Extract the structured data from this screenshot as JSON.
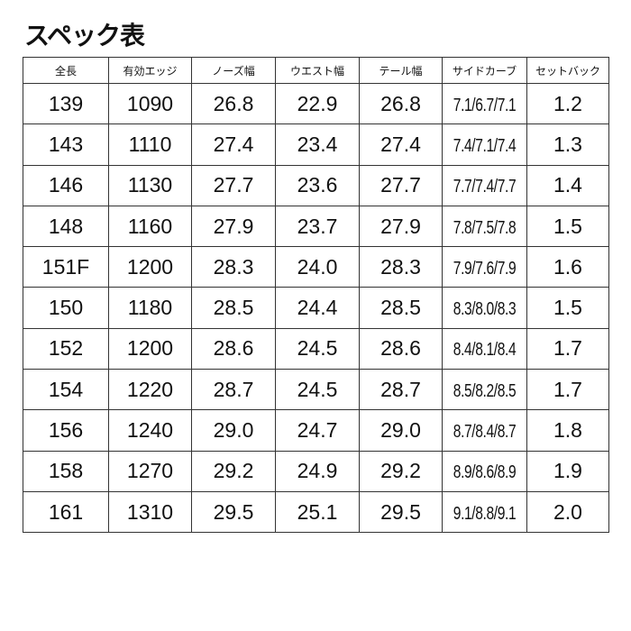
{
  "title": "スペック表",
  "headers": [
    "全長",
    "有効エッジ",
    "ノーズ幅",
    "ウエスト幅",
    "テール幅",
    "サイドカーブ",
    "セットバック"
  ],
  "rows": [
    [
      "139",
      "1090",
      "26.8",
      "22.9",
      "26.8",
      "7.1/6.7/7.1",
      "1.2"
    ],
    [
      "143",
      "1110",
      "27.4",
      "23.4",
      "27.4",
      "7.4/7.1/7.4",
      "1.3"
    ],
    [
      "146",
      "1130",
      "27.7",
      "23.6",
      "27.7",
      "7.7/7.4/7.7",
      "1.4"
    ],
    [
      "148",
      "1160",
      "27.9",
      "23.7",
      "27.9",
      "7.8/7.5/7.8",
      "1.5"
    ],
    [
      "151F",
      "1200",
      "28.3",
      "24.0",
      "28.3",
      "7.9/7.6/7.9",
      "1.6"
    ],
    [
      "150",
      "1180",
      "28.5",
      "24.4",
      "28.5",
      "8.3/8.0/8.3",
      "1.5"
    ],
    [
      "152",
      "1200",
      "28.6",
      "24.5",
      "28.6",
      "8.4/8.1/8.4",
      "1.7"
    ],
    [
      "154",
      "1220",
      "28.7",
      "24.5",
      "28.7",
      "8.5/8.2/8.5",
      "1.7"
    ],
    [
      "156",
      "1240",
      "29.0",
      "24.7",
      "29.0",
      "8.7/8.4/8.7",
      "1.8"
    ],
    [
      "158",
      "1270",
      "29.2",
      "24.9",
      "29.2",
      "8.9/8.6/8.9",
      "1.9"
    ],
    [
      "161",
      "1310",
      "29.5",
      "25.1",
      "29.5",
      "9.1/8.8/9.1",
      "2.0"
    ]
  ]
}
